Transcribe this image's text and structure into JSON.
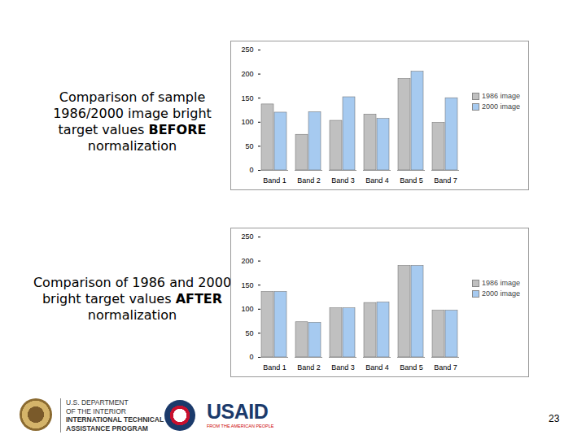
{
  "chart_data": [
    {
      "type": "bar",
      "title": "Comparison of sample 1986/2000 image bright target values BEFORE normalization",
      "categories": [
        "Band 1",
        "Band 2",
        "Band 3",
        "Band 4",
        "Band 5",
        "Band 7"
      ],
      "series": [
        {
          "name": "1986 image",
          "color": "#c0c0c0",
          "values": [
            137,
            74,
            103,
            116,
            190,
            99
          ]
        },
        {
          "name": "2000 image",
          "color": "#a6caf0",
          "values": [
            120,
            121,
            152,
            107,
            205,
            150
          ]
        }
      ],
      "ylim": [
        0,
        250
      ],
      "yticks": [
        0,
        50,
        100,
        150,
        200,
        250
      ],
      "grid": false,
      "legend": "right"
    },
    {
      "type": "bar",
      "title": "Comparison of 1986 and 2000 bright target values AFTER normalization",
      "categories": [
        "Band 1",
        "Band 2",
        "Band 3",
        "Band 4",
        "Band 5",
        "Band 7"
      ],
      "series": [
        {
          "name": "1986 image",
          "color": "#c0c0c0",
          "values": [
            136,
            73,
            102,
            113,
            190,
            97
          ]
        },
        {
          "name": "2000 image",
          "color": "#a6caf0",
          "values": [
            136,
            72,
            102,
            114,
            190,
            97
          ]
        }
      ],
      "ylim": [
        0,
        250
      ],
      "yticks": [
        0,
        50,
        100,
        150,
        200,
        250
      ],
      "grid": false,
      "legend": "right"
    }
  ],
  "footer": {
    "department": [
      "U.S. DEPARTMENT",
      "OF THE INTERIOR",
      "INTERNATIONAL TECHNICAL",
      "ASSISTANCE PROGRAM"
    ],
    "agency": "USAID",
    "agency_tagline": "FROM THE AMERICAN PEOPLE",
    "page_number": 23
  }
}
